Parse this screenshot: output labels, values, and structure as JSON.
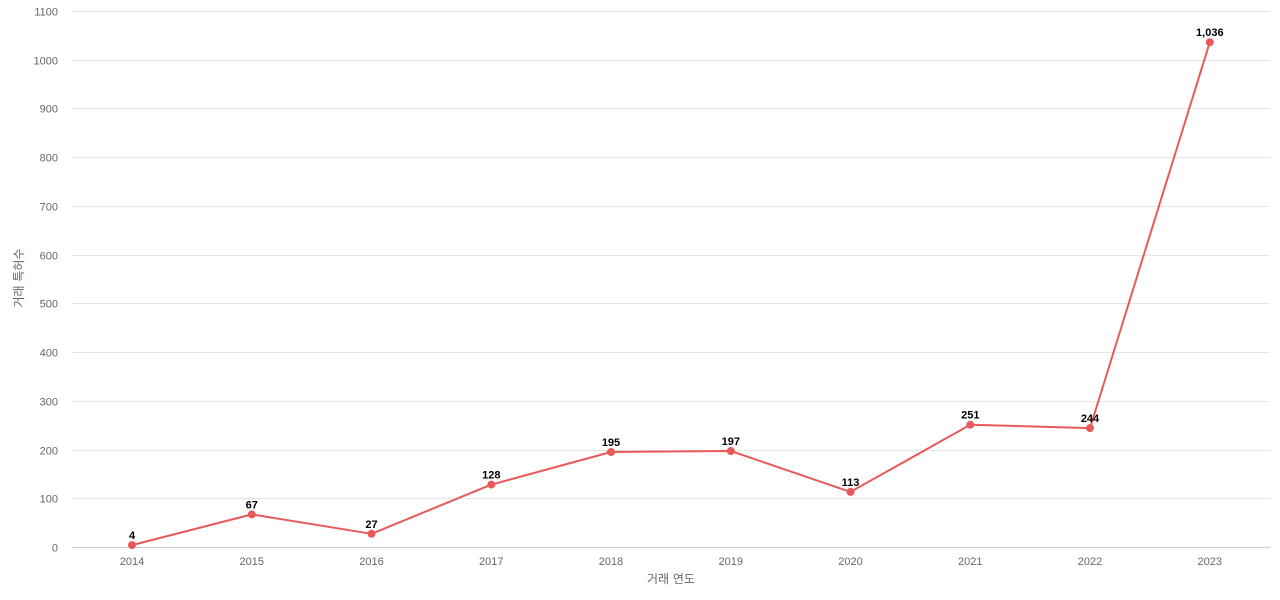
{
  "chart_data": {
    "type": "line",
    "title": "",
    "xlabel": "거래 연도",
    "ylabel": "거래 특허수",
    "categories": [
      "2014",
      "2015",
      "2016",
      "2017",
      "2018",
      "2019",
      "2020",
      "2021",
      "2022",
      "2023"
    ],
    "series": [
      {
        "values": [
          4,
          67,
          27,
          128,
          195,
          197,
          113,
          251,
          244,
          1036
        ],
        "data_labels": [
          "4",
          "67",
          "27",
          "128",
          "195",
          "197",
          "113",
          "251",
          "244",
          "1,036"
        ],
        "color": "#e85a5a"
      }
    ],
    "ylim": [
      0,
      1100
    ],
    "yticks": [
      "0",
      "100",
      "200",
      "300",
      "400",
      "500",
      "600",
      "700",
      "800",
      "900",
      "1000",
      "1100"
    ],
    "grid": true,
    "legend": "none"
  }
}
